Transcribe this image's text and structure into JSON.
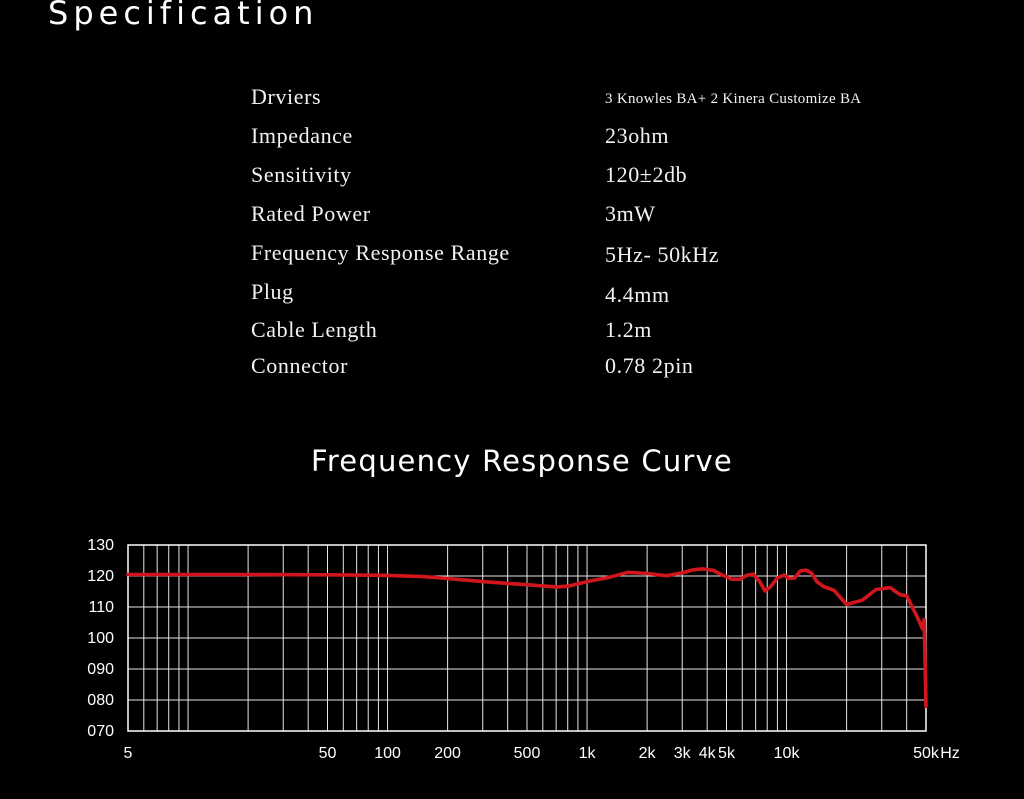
{
  "header": {
    "title": "Specification"
  },
  "specs": [
    {
      "label": "Drviers",
      "value": "3 Knowles BA+ 2 Kinera Customize BA"
    },
    {
      "label": "Impedance",
      "value": "23ohm"
    },
    {
      "label": "Sensitivity",
      "value": "120±2db"
    },
    {
      "label": "Rated Power",
      "value": "3mW"
    },
    {
      "label": "Frequency Response Range",
      "value": "5Hz- 50kHz"
    },
    {
      "label": "Plug",
      "value": "4.4mm"
    },
    {
      "label": "Cable Length",
      "value": "1.2m"
    },
    {
      "label": "Connector",
      "value": "0.78 2pin"
    }
  ],
  "chart_data": {
    "type": "line",
    "title": "Frequency Response Curve",
    "xscale": "log",
    "xlim": [
      5,
      50000
    ],
    "ylim": [
      70,
      130
    ],
    "x_unit": "Hz",
    "x_ticks": [
      {
        "value": 5,
        "label": "5"
      },
      {
        "value": 50,
        "label": "50"
      },
      {
        "value": 100,
        "label": "100"
      },
      {
        "value": 200,
        "label": "200"
      },
      {
        "value": 500,
        "label": "500"
      },
      {
        "value": 1000,
        "label": "1k"
      },
      {
        "value": 2000,
        "label": "2k"
      },
      {
        "value": 3000,
        "label": "3k"
      },
      {
        "value": 4000,
        "label": "4k"
      },
      {
        "value": 5000,
        "label": "5k"
      },
      {
        "value": 10000,
        "label": "10k"
      },
      {
        "value": 50000,
        "label": "50k"
      }
    ],
    "y_ticks": [
      {
        "value": 130,
        "label": "130"
      },
      {
        "value": 120,
        "label": "120"
      },
      {
        "value": 110,
        "label": "110"
      },
      {
        "value": 100,
        "label": "100"
      },
      {
        "value": 90,
        "label": "090"
      },
      {
        "value": 80,
        "label": "080"
      },
      {
        "value": 70,
        "label": "070"
      }
    ],
    "grid": true,
    "line_color": "#d0161c",
    "series": [
      {
        "x": [
          5,
          10,
          20,
          50,
          100,
          150,
          200,
          300,
          400,
          500,
          600,
          700,
          800,
          1000,
          1300,
          1600,
          2000,
          2500,
          3000,
          3400,
          3800,
          4300,
          4700,
          5300,
          5800,
          6300,
          6800,
          7300,
          7800,
          8300,
          9000,
          9700,
          10300,
          11000,
          11700,
          12500,
          13300,
          14200,
          15300,
          17300,
          20000,
          24000,
          28000,
          33000,
          37000,
          40000,
          45000,
          48000,
          49000,
          50000
        ],
        "y": [
          120.5,
          120.5,
          120.5,
          120.4,
          120.2,
          119.8,
          119.2,
          118.2,
          117.6,
          117.2,
          116.8,
          116.5,
          116.7,
          118.2,
          119.6,
          121.2,
          120.8,
          120.1,
          121,
          122,
          122.3,
          121.8,
          120.5,
          119,
          118.9,
          120.2,
          120.6,
          118.4,
          115.2,
          116.5,
          119.4,
          120.3,
          119.2,
          119.4,
          121.6,
          121.9,
          121,
          118.2,
          116.6,
          115.4,
          110.8,
          112.2,
          115.6,
          116.3,
          114,
          113.6,
          107,
          103,
          106,
          78
        ]
      }
    ]
  }
}
